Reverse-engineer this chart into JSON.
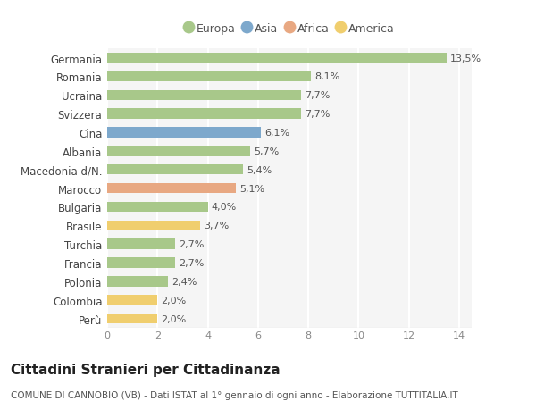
{
  "categories": [
    "Perù",
    "Colombia",
    "Polonia",
    "Francia",
    "Turchia",
    "Brasile",
    "Bulgaria",
    "Marocco",
    "Macedonia d/N.",
    "Albania",
    "Cina",
    "Svizzera",
    "Ucraina",
    "Romania",
    "Germania"
  ],
  "values": [
    2.0,
    2.0,
    2.4,
    2.7,
    2.7,
    3.7,
    4.0,
    5.1,
    5.4,
    5.7,
    6.1,
    7.7,
    7.7,
    8.1,
    13.5
  ],
  "labels": [
    "2,0%",
    "2,0%",
    "2,4%",
    "2,7%",
    "2,7%",
    "3,7%",
    "4,0%",
    "5,1%",
    "5,4%",
    "5,7%",
    "6,1%",
    "7,7%",
    "7,7%",
    "8,1%",
    "13,5%"
  ],
  "colors": [
    "#f0ce6e",
    "#f0ce6e",
    "#a8c88a",
    "#a8c88a",
    "#a8c88a",
    "#f0ce6e",
    "#a8c88a",
    "#e8a882",
    "#a8c88a",
    "#a8c88a",
    "#7da8cc",
    "#a8c88a",
    "#a8c88a",
    "#a8c88a",
    "#a8c88a"
  ],
  "legend_labels": [
    "Europa",
    "Asia",
    "Africa",
    "America"
  ],
  "legend_colors": [
    "#a8c88a",
    "#7da8cc",
    "#e8a882",
    "#f0ce6e"
  ],
  "title": "Cittadini Stranieri per Cittadinanza",
  "subtitle": "COMUNE DI CANNOBIO (VB) - Dati ISTAT al 1° gennaio di ogni anno - Elaborazione TUTTITALIA.IT",
  "xlim": [
    0,
    14.5
  ],
  "xticks": [
    0,
    2,
    4,
    6,
    8,
    10,
    12,
    14
  ],
  "bg_color": "#ffffff",
  "plot_bg_color": "#f5f5f5",
  "grid_color": "#ffffff",
  "bar_height": 0.55,
  "label_fontsize": 8,
  "tick_fontsize": 8,
  "ytick_fontsize": 8.5,
  "title_fontsize": 11,
  "subtitle_fontsize": 7.5,
  "legend_fontsize": 9
}
